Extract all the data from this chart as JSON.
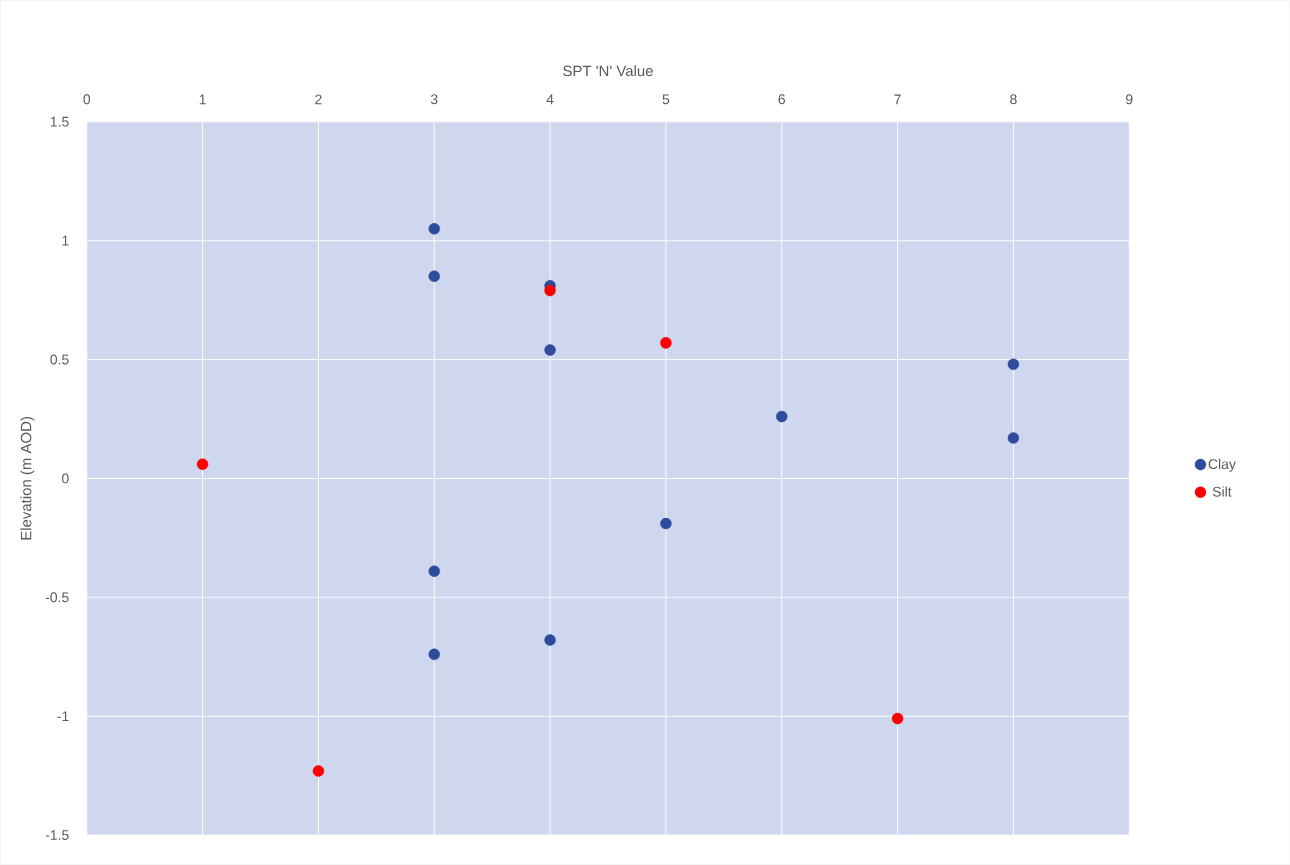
{
  "chart_data": {
    "type": "scatter",
    "xlabel": "SPT 'N' Value",
    "ylabel": "Elevation (m AOD)",
    "xlim": [
      0,
      9
    ],
    "xticks": [
      0,
      1,
      2,
      3,
      4,
      5,
      6,
      7,
      8,
      9
    ],
    "ylim": [
      -1.5,
      1.5
    ],
    "yticks": [
      -1.5,
      -1,
      -0.5,
      0,
      0.5,
      1,
      1.5
    ],
    "grid": true,
    "legend": "right",
    "marker": "circle",
    "series": [
      {
        "name": "Clay",
        "color": "#2f4b9c",
        "x": [
          3,
          3,
          4,
          4,
          8,
          6,
          8,
          5,
          3,
          3,
          4
        ],
        "values": [
          1.05,
          0.85,
          0.81,
          0.54,
          0.48,
          0.26,
          0.17,
          -0.19,
          -0.39,
          -0.74,
          -0.68
        ]
      },
      {
        "name": "Silt",
        "color": "#ff0000",
        "x": [
          1,
          4,
          5,
          7,
          2
        ],
        "values": [
          0.06,
          0.79,
          0.57,
          -1.01,
          -1.23
        ]
      }
    ]
  }
}
